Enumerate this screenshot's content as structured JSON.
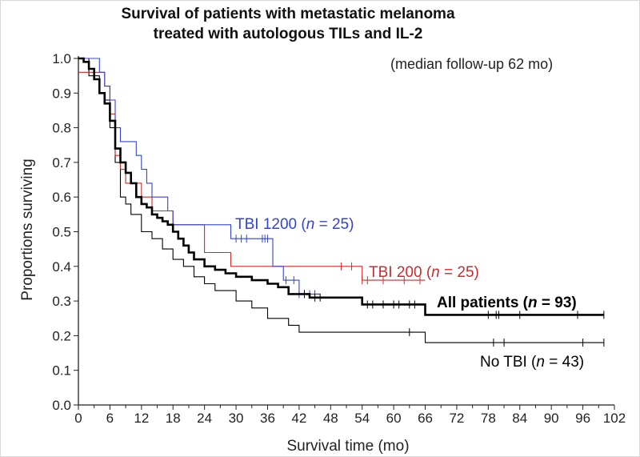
{
  "chart_data": {
    "type": "line",
    "title_line1": "Survival of patients with metastatic melanoma",
    "title_line2": "treated with autologous TILs and IL-2",
    "subtitle": "(median follow-up 62 mo)",
    "xlabel": "Survival time (mo)",
    "ylabel": "Proportions surviving",
    "xlim": [
      0,
      102
    ],
    "ylim": [
      0,
      1
    ],
    "x_ticks": [
      "0",
      "3",
      "6",
      "9",
      "12",
      "15",
      "18",
      "21",
      "24",
      "27",
      "30",
      "33",
      "36",
      "39",
      "42",
      "45",
      "48",
      "51",
      "54",
      "57",
      "60",
      "63",
      "66",
      "69",
      "72",
      "75",
      "78",
      "81",
      "84",
      "87",
      "90",
      "93",
      "96",
      "99",
      "102"
    ],
    "x_tick_labels": [
      "0",
      "6",
      "12",
      "18",
      "24",
      "30",
      "36",
      "42",
      "48",
      "54",
      "60",
      "66",
      "72",
      "78",
      "84",
      "90",
      "96",
      "102"
    ],
    "y_tick_labels": [
      "0.0",
      "0.1",
      "0.2",
      "0.3",
      "0.4",
      "0.5",
      "0.6",
      "0.7",
      "0.8",
      "0.9",
      "1.0"
    ],
    "step": true,
    "series": [
      {
        "name": "TBI 1200",
        "label_prefix": "TBI 1200 (",
        "label_n": "n",
        "label_suffix": " = 25)",
        "color": "#3344cc",
        "x": [
          0,
          4,
          5,
          6,
          7,
          8,
          10,
          11,
          12,
          13,
          14,
          16,
          17,
          18,
          22,
          23,
          24,
          29,
          37,
          39,
          42,
          44,
          46
        ],
        "y": [
          1.0,
          0.96,
          0.92,
          0.88,
          0.8,
          0.76,
          0.76,
          0.72,
          0.68,
          0.64,
          0.6,
          0.6,
          0.56,
          0.52,
          0.52,
          0.52,
          0.52,
          0.48,
          0.4,
          0.36,
          0.32,
          0.32,
          0.32
        ],
        "censor_x": [
          30,
          31,
          32,
          35,
          35.5,
          36,
          39.5,
          41,
          42,
          43,
          44,
          45
        ]
      },
      {
        "name": "TBI 200",
        "label_prefix": "TBI 200 (",
        "label_n": "n",
        "label_suffix": " = 25)",
        "color": "#cc2b2b",
        "x": [
          0,
          3,
          5,
          6,
          7,
          8,
          9,
          10,
          12,
          14,
          16,
          18,
          20,
          24,
          27,
          29,
          54,
          66
        ],
        "y": [
          0.96,
          0.96,
          0.92,
          0.84,
          0.72,
          0.68,
          0.64,
          0.64,
          0.6,
          0.56,
          0.56,
          0.52,
          0.52,
          0.44,
          0.44,
          0.4,
          0.36,
          0.36
        ],
        "censor_x": [
          50,
          52,
          54,
          55,
          58,
          62,
          65
        ]
      },
      {
        "name": "All patients",
        "label_prefix": "All patients (",
        "label_n": "n",
        "label_suffix": "  = 93)",
        "color": "#000000",
        "x": [
          0,
          1,
          2,
          3,
          4,
          5,
          6,
          7,
          8,
          9,
          10,
          11,
          12,
          13,
          14,
          15,
          16,
          17,
          18,
          19,
          20,
          21,
          22,
          24,
          26,
          28,
          30,
          33,
          36,
          38,
          40,
          42,
          44,
          48,
          54,
          66,
          100
        ],
        "y": [
          1.0,
          0.99,
          0.97,
          0.94,
          0.9,
          0.87,
          0.82,
          0.74,
          0.7,
          0.67,
          0.64,
          0.6,
          0.58,
          0.57,
          0.55,
          0.54,
          0.53,
          0.52,
          0.5,
          0.48,
          0.46,
          0.44,
          0.42,
          0.4,
          0.39,
          0.38,
          0.37,
          0.36,
          0.35,
          0.34,
          0.32,
          0.32,
          0.31,
          0.31,
          0.29,
          0.26,
          0.26
        ],
        "censor_x": [
          43,
          45,
          46,
          55,
          56,
          58,
          60,
          61,
          63,
          64,
          78,
          79.5,
          80,
          84,
          95,
          100
        ]
      },
      {
        "name": "No TBI",
        "label_prefix": "No TBI (",
        "label_n": "n",
        "label_suffix": " = 43)",
        "color": "#000000",
        "x": [
          0,
          2,
          4,
          5,
          6,
          7,
          8,
          9,
          10,
          12,
          14,
          16,
          18,
          20,
          22,
          24,
          26,
          30,
          33,
          36,
          40,
          42,
          48,
          54,
          66,
          100
        ],
        "y": [
          1.0,
          0.95,
          0.9,
          0.88,
          0.8,
          0.7,
          0.6,
          0.58,
          0.55,
          0.5,
          0.48,
          0.45,
          0.42,
          0.4,
          0.37,
          0.35,
          0.33,
          0.3,
          0.28,
          0.25,
          0.23,
          0.21,
          0.21,
          0.21,
          0.18,
          0.18
        ],
        "censor_x": [
          63,
          79,
          81,
          96,
          100
        ]
      }
    ]
  }
}
